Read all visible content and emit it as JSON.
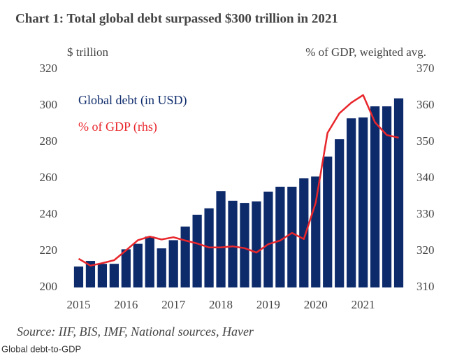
{
  "chart_data": {
    "type": "bar_line",
    "title": "Chart 1: Total global debt surpassed $300 trillion in 2021",
    "y_label": "$ trillion",
    "y2_label": "% of GDP, weighted avg.",
    "source": "Source: IIF, BIS, IMF, National sources, Haver",
    "caption": "Global debt-to-GDP",
    "categories": [
      "2015",
      null,
      null,
      null,
      "2016",
      null,
      null,
      null,
      "2017",
      null,
      null,
      null,
      "2018",
      null,
      null,
      null,
      "2019",
      null,
      null,
      null,
      "2020",
      null,
      null,
      null,
      "2021",
      null,
      null,
      null
    ],
    "series": [
      {
        "name": "Global debt (in USD)",
        "color": "#0d2a6b",
        "type": "bar",
        "values": [
          211.5,
          214.6,
          213,
          213,
          221,
          224,
          228,
          221.5,
          226,
          233.5,
          240,
          243.5,
          253,
          247.7,
          246.5,
          247.3,
          252.7,
          255.4,
          255.4,
          260,
          261,
          272,
          281.5,
          293,
          293.5,
          299.6,
          299.6,
          304
        ]
      },
      {
        "name": "% of GDP (rhs)",
        "color": "#e8262b",
        "type": "line",
        "axis": "y2",
        "values": [
          317.9,
          316,
          316.7,
          317.5,
          320.2,
          323,
          324,
          323.2,
          323.8,
          322.9,
          322.1,
          321,
          321,
          321.3,
          320.8,
          319.6,
          321.9,
          322.9,
          325,
          323.3,
          333.3,
          352.5,
          357.9,
          360.8,
          362.9,
          355.4,
          351.9,
          351.2
        ]
      }
    ],
    "ylim": [
      200,
      320
    ],
    "yticks": [
      200,
      220,
      240,
      260,
      280,
      300,
      320
    ],
    "y2lim": [
      310,
      370
    ],
    "y2ticks": [
      310,
      320,
      330,
      340,
      350,
      360,
      370
    ]
  }
}
